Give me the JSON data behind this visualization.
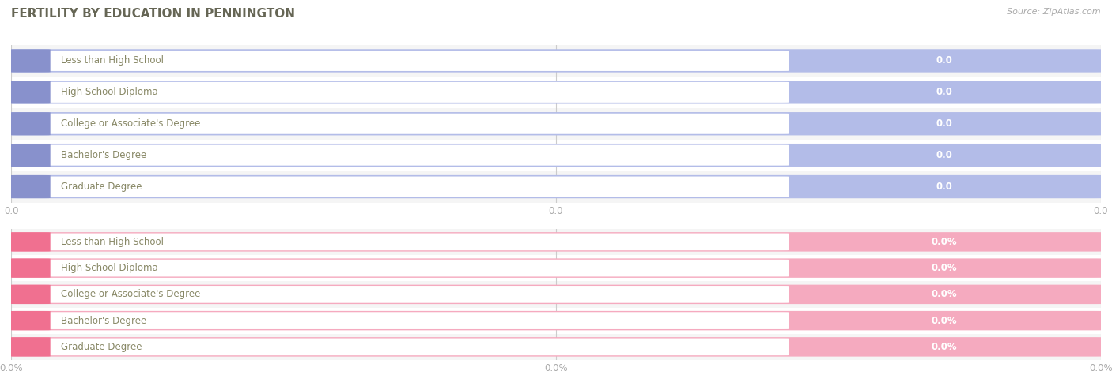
{
  "title": "FERTILITY BY EDUCATION IN PENNINGTON",
  "source": "Source: ZipAtlas.com",
  "categories": [
    "Less than High School",
    "High School Diploma",
    "College or Associate's Degree",
    "Bachelor's Degree",
    "Graduate Degree"
  ],
  "top_values": [
    0.0,
    0.0,
    0.0,
    0.0,
    0.0
  ],
  "bottom_values": [
    0.0,
    0.0,
    0.0,
    0.0,
    0.0
  ],
  "top_bar_color": "#b3bce8",
  "top_left_dot_color": "#8891cc",
  "top_label_bg": "#ffffff",
  "top_value_color": "#ffffff",
  "top_text_color": "#888866",
  "bottom_bar_color": "#f5aabf",
  "bottom_left_dot_color": "#f07090",
  "bottom_label_bg": "#ffffff",
  "bottom_value_color": "#ffffff",
  "bottom_text_color": "#888866",
  "top_tick_labels": [
    "0.0",
    "0.0",
    "0.0"
  ],
  "bottom_tick_labels": [
    "0.0%",
    "0.0%",
    "0.0%"
  ],
  "title_color": "#666655",
  "source_color": "#aaaaaa",
  "tick_color": "#aaaaaa",
  "row_bg_even": "#f5f5f5",
  "row_bg_odd": "#ffffff",
  "separator_color": "#dddddd",
  "grid_color": "#cccccc"
}
